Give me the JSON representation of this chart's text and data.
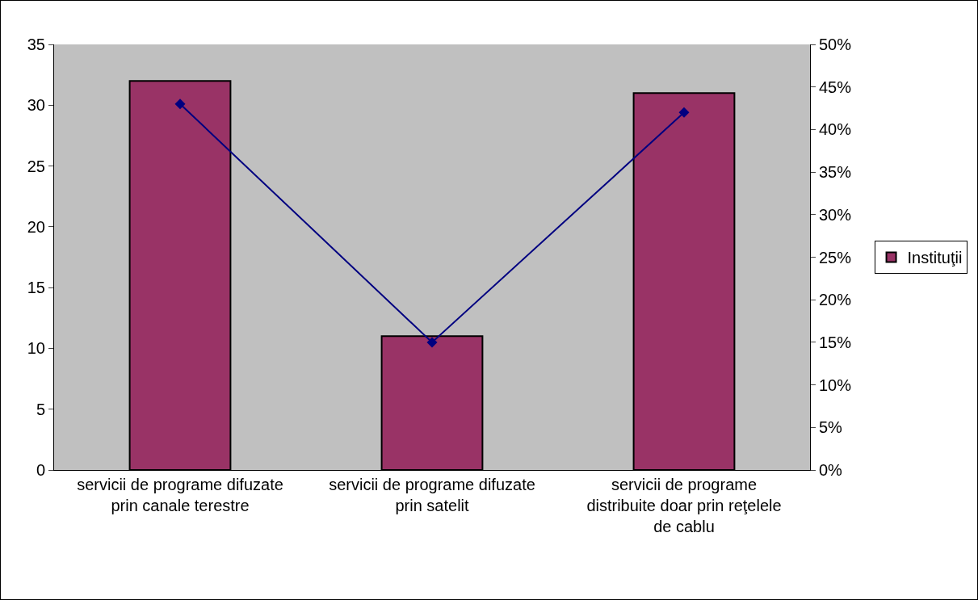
{
  "chart_data": {
    "type": "bar",
    "categories": [
      "servicii de programe difuzate prin canale terestre",
      "servicii de programe difuzate prin satelit",
      "servicii de programe distribuite doar prin reţelele de cablu"
    ],
    "series": [
      {
        "name": "Instituţii",
        "color": "#993366",
        "values": [
          32,
          11,
          31
        ]
      },
      {
        "type": "line",
        "axis": "y2",
        "color": "#000080",
        "marker": "diamond",
        "values": [
          43,
          15,
          42
        ]
      }
    ],
    "ylim": [
      0,
      35
    ],
    "yticks": [
      0,
      5,
      10,
      15,
      20,
      25,
      30,
      35
    ],
    "y2lim": [
      0,
      50
    ],
    "y2ticks": [
      {
        "value": 0,
        "label": "0%"
      },
      {
        "value": 5,
        "label": "5%"
      },
      {
        "value": 10,
        "label": "10%"
      },
      {
        "value": 15,
        "label": "15%"
      },
      {
        "value": 20,
        "label": "20%"
      },
      {
        "value": 25,
        "label": "25%"
      },
      {
        "value": 30,
        "label": "30%"
      },
      {
        "value": 35,
        "label": "35%"
      },
      {
        "value": 40,
        "label": "40%"
      },
      {
        "value": 45,
        "label": "45%"
      },
      {
        "value": 50,
        "label": "50%"
      }
    ],
    "grid": false,
    "legend": "right"
  }
}
